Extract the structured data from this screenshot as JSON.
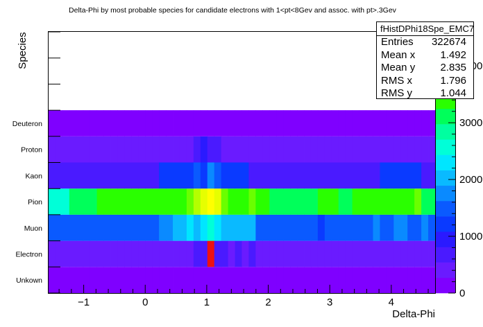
{
  "chart_data": {
    "type": "heatmap",
    "title": "Delta-Phi by most probable species for candidate electrons with 1<pt<8Gev and assoc. with pt>.3Gev",
    "xlabel": "Delta-Phi",
    "ylabel": "Species",
    "xlim": [
      -1.5708,
      4.7124
    ],
    "ylim": [
      0,
      10
    ],
    "x_ticks": [
      -1,
      0,
      1,
      2,
      3,
      4
    ],
    "x_tick_labels": [
      "−1",
      "0",
      "1",
      "2",
      "3",
      "4"
    ],
    "y_categories": [
      "Unkown",
      "Electron",
      "Muon",
      "Pion",
      "Kaon",
      "Proton",
      "Deuteron"
    ],
    "n_x_bins": 56,
    "z_max": 4600,
    "z_ticks": [
      0,
      1000,
      2000,
      3000,
      4000
    ],
    "z_tick_labels": [
      "0",
      "1000",
      "2000",
      "3000",
      "4000"
    ],
    "values": [
      [
        20,
        20,
        20,
        20,
        20,
        20,
        20,
        20,
        20,
        20,
        20,
        20,
        20,
        20,
        20,
        20,
        20,
        20,
        20,
        20,
        20,
        20,
        20,
        20,
        20,
        20,
        20,
        20,
        20,
        20,
        20,
        20,
        20,
        20,
        20,
        20,
        20,
        20,
        20,
        20,
        20,
        20,
        20,
        20,
        20,
        20,
        20,
        20,
        20,
        20,
        20,
        20,
        20,
        20,
        20,
        20
      ],
      [
        300,
        300,
        300,
        300,
        300,
        300,
        300,
        300,
        300,
        300,
        300,
        300,
        300,
        300,
        300,
        300,
        500,
        500,
        500,
        500,
        500,
        700,
        700,
        4600,
        700,
        700,
        500,
        700,
        500,
        700,
        300,
        300,
        300,
        300,
        300,
        300,
        300,
        300,
        300,
        300,
        300,
        300,
        300,
        300,
        300,
        300,
        300,
        300,
        300,
        300,
        300,
        300,
        300,
        300,
        300,
        300
      ],
      [
        1500,
        1500,
        1500,
        1500,
        1500,
        1500,
        1500,
        1500,
        1500,
        1500,
        1500,
        1500,
        1500,
        1500,
        1500,
        1500,
        1800,
        1800,
        2000,
        2000,
        2200,
        2000,
        2400,
        2600,
        2400,
        2000,
        2000,
        2000,
        2000,
        2000,
        1500,
        1500,
        1500,
        1500,
        1500,
        1500,
        1500,
        1500,
        1500,
        1200,
        1500,
        1500,
        1500,
        1500,
        1500,
        1500,
        1500,
        1800,
        1500,
        1500,
        1800,
        1800,
        1500,
        1500,
        1800,
        1500
      ],
      [
        2600,
        2600,
        2600,
        3000,
        3000,
        3000,
        3000,
        3400,
        3400,
        3400,
        3400,
        3400,
        3400,
        3400,
        3400,
        3400,
        3400,
        3400,
        3500,
        3500,
        3700,
        3900,
        4100,
        4400,
        4100,
        3700,
        3500,
        3400,
        3500,
        3700,
        3400,
        3400,
        3000,
        3000,
        3000,
        3000,
        3000,
        3000,
        3000,
        3400,
        3400,
        3500,
        3000,
        3000,
        3400,
        3400,
        3400,
        3400,
        3400,
        3400,
        3400,
        3400,
        3400,
        3700,
        3000,
        3000
      ],
      [
        800,
        800,
        800,
        800,
        800,
        800,
        800,
        800,
        800,
        800,
        800,
        800,
        800,
        800,
        800,
        800,
        1200,
        1200,
        1200,
        1200,
        1200,
        1500,
        1200,
        1800,
        1500,
        1200,
        1200,
        1200,
        1200,
        800,
        800,
        800,
        800,
        800,
        800,
        800,
        800,
        800,
        800,
        800,
        800,
        800,
        800,
        800,
        800,
        800,
        800,
        800,
        1200,
        1200,
        1200,
        1200,
        1200,
        1200,
        800,
        800
      ],
      [
        400,
        400,
        400,
        400,
        400,
        400,
        400,
        400,
        400,
        400,
        400,
        400,
        400,
        400,
        400,
        400,
        400,
        400,
        400,
        400,
        400,
        600,
        1000,
        600,
        600,
        400,
        400,
        400,
        400,
        400,
        400,
        400,
        400,
        400,
        400,
        400,
        400,
        400,
        400,
        400,
        400,
        400,
        400,
        400,
        400,
        400,
        400,
        400,
        400,
        400,
        400,
        400,
        400,
        400,
        400,
        400
      ],
      [
        40,
        40,
        40,
        40,
        40,
        40,
        40,
        40,
        40,
        40,
        40,
        40,
        40,
        40,
        40,
        40,
        40,
        40,
        40,
        40,
        40,
        40,
        40,
        40,
        40,
        40,
        40,
        40,
        40,
        40,
        40,
        40,
        40,
        40,
        40,
        40,
        40,
        40,
        40,
        40,
        40,
        40,
        40,
        40,
        40,
        40,
        40,
        40,
        40,
        40,
        40,
        40,
        40,
        40,
        40,
        40
      ]
    ],
    "legend": "top-right",
    "grid": false
  },
  "stats": {
    "name": "fHistDPhi18Spe_EMC7",
    "entries_label": "Entries",
    "entries": "322674",
    "mean_x_label": "Mean x",
    "mean_x": "1.492",
    "mean_y_label": "Mean y",
    "mean_y": "2.835",
    "rms_x_label": "RMS x",
    "rms_x": "1.796",
    "rms_y_label": "RMS y",
    "rms_y": "1.044"
  },
  "palette": [
    "#7f00ff",
    "#6a1bff",
    "#4a1aff",
    "#2a1aff",
    "#0a3aff",
    "#0a5aff",
    "#0a8aff",
    "#0abaff",
    "#00e6ff",
    "#00ffd8",
    "#00ffa0",
    "#00ff5a",
    "#2aff00",
    "#6aff00",
    "#b4ff00",
    "#e6ff00",
    "#ffff00"
  ],
  "hot_color": "#ee1111"
}
